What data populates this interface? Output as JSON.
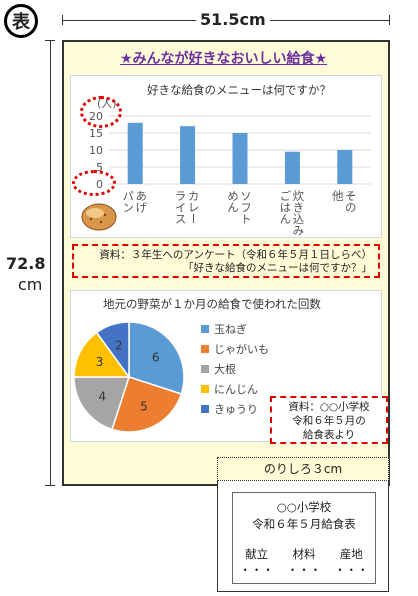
{
  "badge": "表",
  "dimensions": {
    "width_label": "51.5cm",
    "height_value": "72.8",
    "height_unit": "cm"
  },
  "poster": {
    "title": "★みんなが好きなおいしい給食★",
    "bar_caption": "資料：３年生へのアンケート（令和６年５月１日しらべ）\n「好きな給食のメニューは何ですか？」",
    "pie_caption": "資料：○○小学校\n令和６年５月の\n給食表より"
  },
  "chart_data": [
    {
      "type": "bar",
      "title": "好きな給食のメニューは何ですか？",
      "ylabel": "(人)",
      "ylim": [
        0,
        20
      ],
      "yticks": [
        0,
        5,
        10,
        15,
        20
      ],
      "categories": [
        "あげパン",
        "カレーライス",
        "ソフトめん",
        "炊き込みごはん",
        "その他"
      ],
      "category_lines": [
        [
          "あげ",
          "パン"
        ],
        [
          "カレー",
          "ライス"
        ],
        [
          "ソフト",
          "めん"
        ],
        [
          "炊き込み",
          "ごはん"
        ],
        [
          "その",
          "他"
        ]
      ],
      "values": [
        18,
        17,
        15,
        9.5,
        10
      ],
      "color": "#5b9bd5"
    },
    {
      "type": "pie",
      "title": "地元の野菜が１か月の給食で使われた回数",
      "labels": [
        "玉ねぎ",
        "じゃがいも",
        "大根",
        "にんじん",
        "きゅうり"
      ],
      "values": [
        6,
        5,
        4,
        3,
        2
      ],
      "colors": [
        "#5b9bd5",
        "#ed7d31",
        "#a5a5a5",
        "#ffc000",
        "#4472c4"
      ]
    }
  ],
  "glue_tab": {
    "label": "のりしろ３cm",
    "school": "○○小学校",
    "subtitle": "令和６年５月給食表",
    "columns": [
      "献立",
      "材料",
      "産地"
    ],
    "ellipsis": "・・・"
  }
}
